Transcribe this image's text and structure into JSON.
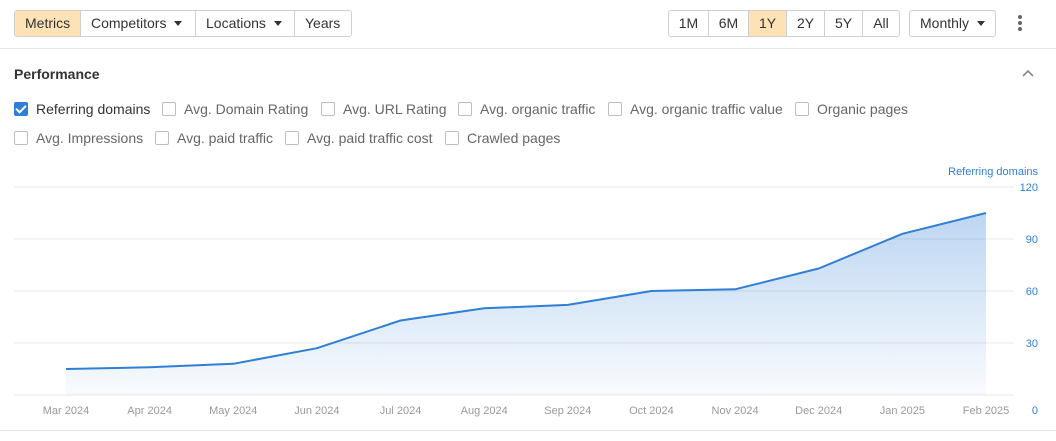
{
  "toolbar": {
    "left_group": [
      {
        "label": "Metrics",
        "active": true,
        "dropdown": false
      },
      {
        "label": "Competitors",
        "active": false,
        "dropdown": true
      },
      {
        "label": "Locations",
        "active": false,
        "dropdown": true
      },
      {
        "label": "Years",
        "active": false,
        "dropdown": false
      }
    ],
    "ranges": [
      {
        "label": "1M",
        "active": false
      },
      {
        "label": "6M",
        "active": false
      },
      {
        "label": "1Y",
        "active": true
      },
      {
        "label": "2Y",
        "active": false
      },
      {
        "label": "5Y",
        "active": false
      },
      {
        "label": "All",
        "active": false
      }
    ],
    "interval_label": "Monthly",
    "more_icon": "more-vertical-icon"
  },
  "panel": {
    "title": "Performance",
    "collapse_icon": "chevron-up-icon"
  },
  "metrics": [
    {
      "label": "Referring domains",
      "checked": true
    },
    {
      "label": "Avg. Domain Rating",
      "checked": false
    },
    {
      "label": "Avg. URL Rating",
      "checked": false
    },
    {
      "label": "Avg. organic traffic",
      "checked": false
    },
    {
      "label": "Avg. organic traffic value",
      "checked": false
    },
    {
      "label": "Organic pages",
      "checked": false
    },
    {
      "label": "Avg. Impressions",
      "checked": false
    },
    {
      "label": "Avg. paid traffic",
      "checked": false
    },
    {
      "label": "Avg. paid traffic cost",
      "checked": false
    },
    {
      "label": "Crawled pages",
      "checked": false
    }
  ],
  "colors": {
    "accent": "#2f7fd6",
    "active_button": "#fde2b5",
    "axis_text": "#2f7fd6",
    "x_label": "#999999"
  },
  "chart_data": {
    "type": "area",
    "series_label": "Referring domains",
    "x": [
      "Mar 2024",
      "Apr 2024",
      "May 2024",
      "Jun 2024",
      "Jul 2024",
      "Aug 2024",
      "Sep 2024",
      "Oct 2024",
      "Nov 2024",
      "Dec 2024",
      "Jan 2025",
      "Feb 2025"
    ],
    "series": [
      {
        "name": "Referring domains",
        "values": [
          15,
          16,
          18,
          27,
          43,
          50,
          52,
          60,
          61,
          73,
          93,
          105
        ]
      }
    ],
    "y_ticks": [
      "120",
      "90",
      "60",
      "30",
      "0"
    ],
    "ylim": [
      0,
      120
    ],
    "grid": true,
    "axis_side": "right"
  }
}
